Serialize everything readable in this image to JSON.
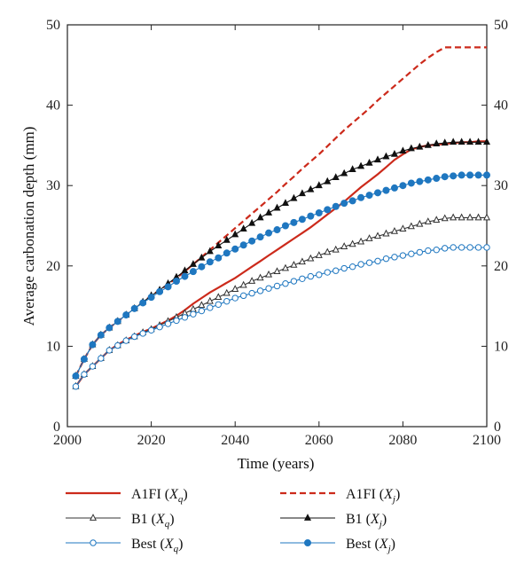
{
  "chart_data": {
    "type": "line",
    "xlabel": "Time (years)",
    "ylabel": "Average carbonation depth (mm)",
    "xlim": [
      2000,
      2100
    ],
    "ylim": [
      0,
      50
    ],
    "xticks": [
      2000,
      2020,
      2040,
      2060,
      2080,
      2100
    ],
    "yticks": [
      0,
      10,
      20,
      30,
      40,
      50
    ],
    "x_start": 2002,
    "x_step": 2,
    "grid": false,
    "legend_position": "below",
    "series": [
      {
        "name": "A1FI",
        "subscript": "q",
        "color": "#cc2a1b",
        "dash": false,
        "marker": "none",
        "values": [
          5.0,
          6.5,
          7.5,
          8.5,
          9.5,
          10.2,
          10.8,
          11.3,
          11.8,
          12.2,
          12.7,
          13.2,
          13.8,
          14.5,
          15.3,
          16.0,
          16.7,
          17.3,
          17.9,
          18.5,
          19.2,
          19.9,
          20.6,
          21.3,
          22.0,
          22.7,
          23.4,
          24.1,
          24.8,
          25.6,
          26.4,
          27.2,
          28.0,
          28.9,
          29.8,
          30.6,
          31.4,
          32.3,
          33.2,
          33.9,
          34.5,
          34.8,
          35.0,
          35.1,
          35.2,
          35.3,
          35.4,
          35.4,
          35.5,
          35.5
        ]
      },
      {
        "name": "A1FI",
        "subscript": "j",
        "color": "#cc2a1b",
        "dash": true,
        "marker": "none",
        "values": [
          6.3,
          8.4,
          10.2,
          11.4,
          12.3,
          13.1,
          13.9,
          14.7,
          15.5,
          16.3,
          17.0,
          17.7,
          18.5,
          19.3,
          20.2,
          21.1,
          22.0,
          22.9,
          23.8,
          24.7,
          25.6,
          26.5,
          27.4,
          28.3,
          29.2,
          30.2,
          31.1,
          32.1,
          33.0,
          33.9,
          34.9,
          35.9,
          36.9,
          37.8,
          38.7,
          39.6,
          40.6,
          41.5,
          42.4,
          43.3,
          44.2,
          45.1,
          45.9,
          46.6,
          47.2,
          47.2,
          47.2,
          47.2,
          47.2,
          47.2
        ]
      },
      {
        "name": "B1",
        "subscript": "q",
        "color": "#333333",
        "dash": false,
        "marker": "open-triangle",
        "values": [
          5.0,
          6.5,
          7.5,
          8.5,
          9.5,
          10.1,
          10.7,
          11.2,
          11.7,
          12.1,
          12.6,
          13.1,
          13.6,
          14.1,
          14.6,
          15.1,
          15.6,
          16.1,
          16.6,
          17.1,
          17.6,
          18.1,
          18.5,
          18.9,
          19.3,
          19.7,
          20.1,
          20.5,
          20.9,
          21.3,
          21.7,
          22.0,
          22.4,
          22.7,
          23.0,
          23.4,
          23.7,
          24.0,
          24.3,
          24.6,
          24.9,
          25.2,
          25.5,
          25.7,
          25.9,
          26.0,
          26.0,
          26.0,
          26.0,
          26.0
        ]
      },
      {
        "name": "B1",
        "subscript": "j",
        "color": "#111111",
        "dash": false,
        "marker": "filled-triangle",
        "values": [
          6.3,
          8.4,
          10.2,
          11.4,
          12.3,
          13.1,
          13.9,
          14.7,
          15.5,
          16.3,
          17.0,
          17.8,
          18.6,
          19.4,
          20.2,
          21.0,
          21.8,
          22.5,
          23.2,
          23.9,
          24.6,
          25.3,
          26.0,
          26.6,
          27.2,
          27.8,
          28.4,
          29.0,
          29.5,
          30.0,
          30.5,
          31.0,
          31.5,
          32.0,
          32.4,
          32.8,
          33.2,
          33.6,
          33.9,
          34.3,
          34.6,
          34.8,
          35.0,
          35.2,
          35.3,
          35.4,
          35.4,
          35.4,
          35.4,
          35.4
        ]
      },
      {
        "name": "Best",
        "subscript": "q",
        "color": "#1f77c0",
        "dash": false,
        "marker": "open-circle",
        "values": [
          5.0,
          6.5,
          7.5,
          8.5,
          9.5,
          10.1,
          10.7,
          11.2,
          11.6,
          12.0,
          12.4,
          12.8,
          13.2,
          13.6,
          14.0,
          14.4,
          14.8,
          15.2,
          15.6,
          16.0,
          16.3,
          16.6,
          16.9,
          17.2,
          17.5,
          17.8,
          18.1,
          18.4,
          18.7,
          18.9,
          19.2,
          19.4,
          19.7,
          19.9,
          20.2,
          20.4,
          20.6,
          20.9,
          21.1,
          21.3,
          21.5,
          21.7,
          21.9,
          22.0,
          22.2,
          22.3,
          22.3,
          22.3,
          22.3,
          22.3
        ]
      },
      {
        "name": "Best",
        "subscript": "j",
        "color": "#1f77c0",
        "dash": false,
        "marker": "filled-circle",
        "values": [
          6.3,
          8.4,
          10.2,
          11.4,
          12.3,
          13.1,
          13.9,
          14.7,
          15.4,
          16.1,
          16.8,
          17.4,
          18.1,
          18.7,
          19.3,
          19.9,
          20.5,
          21.0,
          21.6,
          22.1,
          22.6,
          23.1,
          23.6,
          24.1,
          24.5,
          25.0,
          25.4,
          25.8,
          26.2,
          26.6,
          27.0,
          27.4,
          27.8,
          28.1,
          28.5,
          28.8,
          29.1,
          29.4,
          29.7,
          30.0,
          30.3,
          30.5,
          30.7,
          30.9,
          31.1,
          31.2,
          31.3,
          31.3,
          31.3,
          31.3
        ]
      }
    ]
  }
}
